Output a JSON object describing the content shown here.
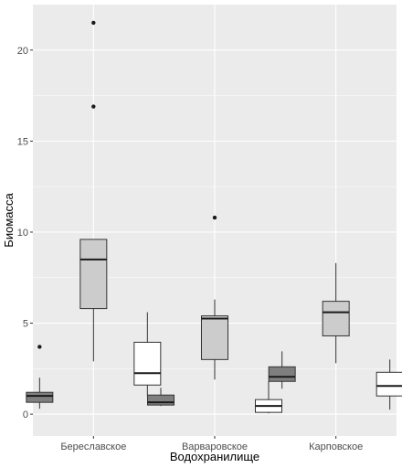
{
  "chart_data": {
    "type": "boxplot",
    "xlabel": "Водохранилище",
    "ylabel": "Биомасса",
    "ylim": [
      -1.2,
      22.5
    ],
    "yticks": [
      0,
      5,
      10,
      15,
      20
    ],
    "grid": true,
    "legend": "none",
    "categories": [
      "Береславское",
      "Варваровское",
      "Карповское"
    ],
    "groups": [
      {
        "category": "Береславское",
        "boxes": [
          {
            "q1": 0.65,
            "median": 1.0,
            "q3": 1.2,
            "whisker_low": 0.3,
            "whisker_high": 2.0,
            "outliers": [
              3.7
            ]
          },
          {
            "q1": 5.8,
            "median": 8.5,
            "q3": 9.6,
            "whisker_low": 2.9,
            "whisker_high": 9.6,
            "outliers": [
              21.5,
              16.9
            ]
          },
          {
            "q1": 1.6,
            "median": 2.25,
            "q3": 3.95,
            "whisker_low": 1.0,
            "whisker_high": 5.6,
            "outliers": []
          }
        ]
      },
      {
        "category": "Варваровское",
        "boxes": [
          {
            "q1": 0.5,
            "median": 0.65,
            "q3": 1.05,
            "whisker_low": 0.45,
            "whisker_high": 1.45,
            "outliers": []
          },
          {
            "q1": 3.0,
            "median": 5.25,
            "q3": 5.4,
            "whisker_low": 1.9,
            "whisker_high": 6.3,
            "outliers": [
              10.8
            ]
          },
          {
            "q1": 0.1,
            "median": 0.45,
            "q3": 0.8,
            "whisker_low": 0.05,
            "whisker_high": 1.8,
            "outliers": []
          }
        ]
      },
      {
        "category": "Карповское",
        "boxes": [
          {
            "q1": 1.8,
            "median": 2.05,
            "q3": 2.6,
            "whisker_low": 1.4,
            "whisker_high": 3.45,
            "outliers": []
          },
          {
            "q1": 4.3,
            "median": 5.6,
            "q3": 6.2,
            "whisker_low": 2.8,
            "whisker_high": 8.3,
            "outliers": []
          },
          {
            "q1": 1.0,
            "median": 1.55,
            "q3": 2.3,
            "whisker_low": 0.25,
            "whisker_high": 3.0,
            "outliers": []
          }
        ]
      }
    ],
    "colors": {
      "panel": "#ebebeb",
      "grid": "#ffffff",
      "fills": [
        "#7f7f7f",
        "#cccccc",
        "#ffffff"
      ],
      "stroke": "#333333",
      "outlier": "#1a1a1a"
    }
  }
}
